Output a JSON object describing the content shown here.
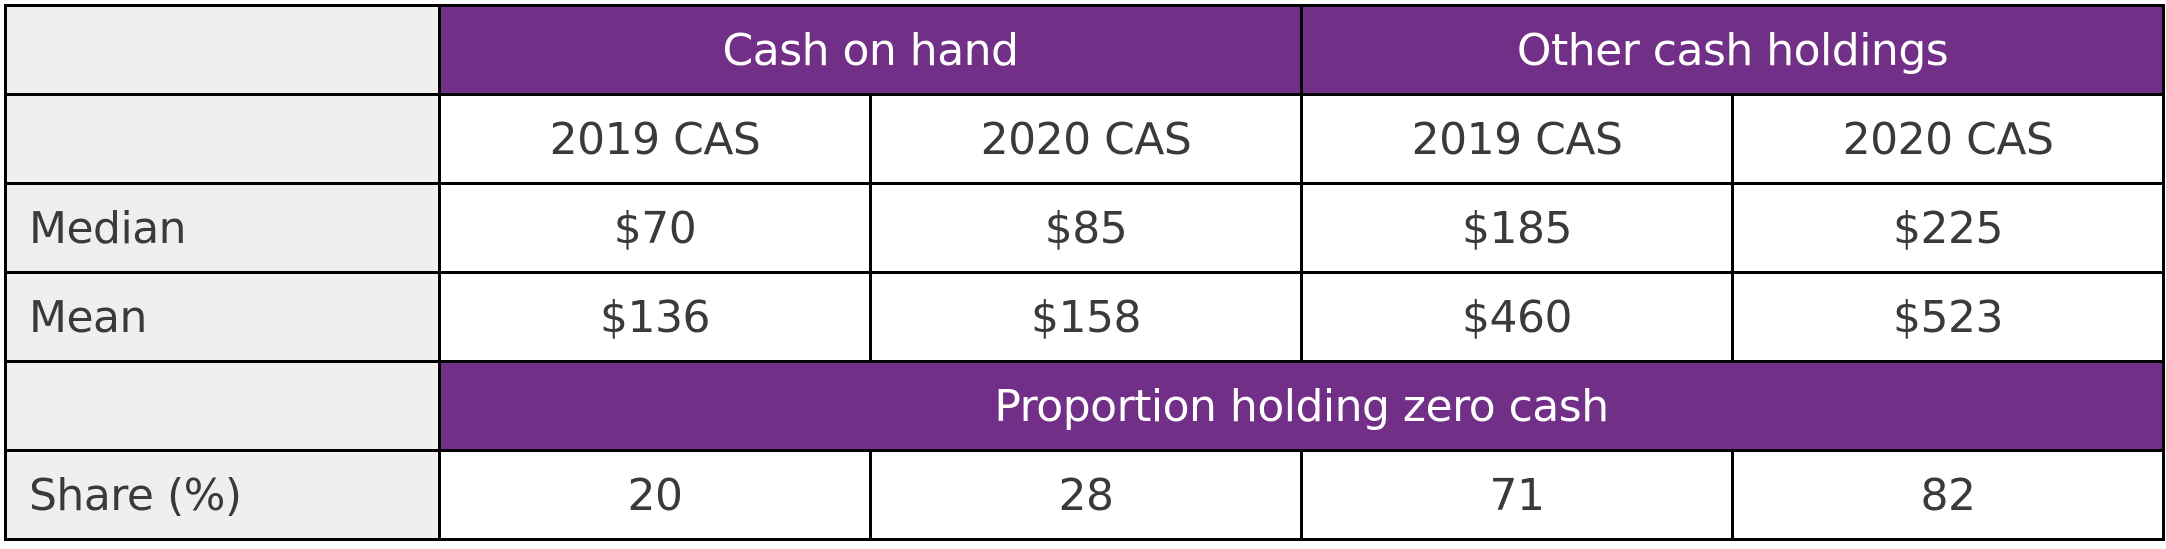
{
  "chart_data": {
    "type": "table",
    "groups": {
      "cash_on_hand": "Cash on hand",
      "other_cash_holdings": "Other cash holdings"
    },
    "columns": [
      "2019 CAS",
      "2020 CAS",
      "2019 CAS",
      "2020 CAS"
    ],
    "rows": [
      {
        "label": "Median",
        "values": [
          "$70",
          "$85",
          "$185",
          "$225"
        ]
      },
      {
        "label": "Mean",
        "values": [
          "$136",
          "$158",
          "$460",
          "$523"
        ]
      }
    ],
    "section_header": "Proportion holding zero cash",
    "share_row": {
      "label": "Share (%)",
      "values": [
        "20",
        "28",
        "71",
        "82"
      ]
    }
  },
  "colors": {
    "header_fill": "#722f87",
    "label_fill": "#efefef",
    "border": "#000000",
    "text": "#3a3a3a"
  }
}
